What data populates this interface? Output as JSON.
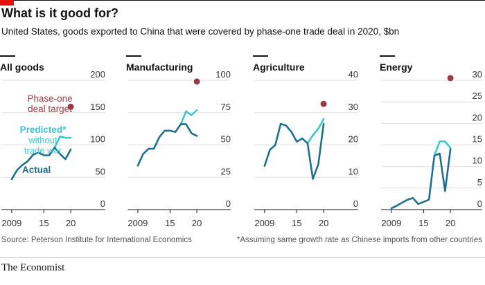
{
  "title": "What is it good for?",
  "subtitle": "United States, goods exported to China that were covered by phase-one trade deal in 2020, $bn",
  "source": "Source: Peterson Institute for International Economics",
  "footnote": "*Assuming same growth rate as Chinese imports from other countries",
  "brand": "The Economist",
  "colors": {
    "actual": "#1f6e8c",
    "predicted": "#3ec6cf",
    "target": "#9b3b47",
    "accent": "#e3120b"
  },
  "annotations": {
    "target": [
      "Phase-one",
      "deal target"
    ],
    "predicted": [
      "Predicted*",
      "without",
      "trade war"
    ],
    "actual": [
      "Actual"
    ]
  },
  "chart_data": [
    {
      "type": "line",
      "title": "All goods",
      "ylim": [
        0,
        200
      ],
      "yticks": [
        0,
        50,
        100,
        150,
        200
      ],
      "xlim": [
        2008.5,
        2020.5
      ],
      "xticks": [
        2009,
        2015,
        2020
      ],
      "xtick_labels": [
        "2009",
        "15",
        "20"
      ],
      "series": [
        {
          "name": "Actual",
          "x": [
            2009,
            2010,
            2011,
            2012,
            2013,
            2014,
            2015,
            2016,
            2017,
            2018,
            2019,
            2020
          ],
          "values": [
            47,
            61,
            69,
            75,
            85,
            88,
            84,
            84,
            96,
            86,
            78,
            93
          ]
        },
        {
          "name": "Predicted*",
          "x": [
            2017,
            2018,
            2019,
            2020
          ],
          "values": [
            96,
            113,
            111,
            111
          ]
        }
      ],
      "target": {
        "x": 2020,
        "value": 159
      }
    },
    {
      "type": "line",
      "title": "Manufacturing",
      "ylim": [
        0,
        100
      ],
      "yticks": [
        0,
        25,
        50,
        75,
        100
      ],
      "xlim": [
        2008.5,
        2020.5
      ],
      "xticks": [
        2009,
        2015,
        2020
      ],
      "xtick_labels": [
        "2009",
        "15",
        "20"
      ],
      "series": [
        {
          "name": "Actual",
          "x": [
            2009,
            2010,
            2011,
            2012,
            2013,
            2014,
            2015,
            2016,
            2017,
            2018,
            2019,
            2020
          ],
          "values": [
            34,
            43,
            47,
            47,
            56,
            61,
            61,
            60,
            66,
            66,
            59,
            57
          ]
        },
        {
          "name": "Predicted*",
          "x": [
            2017,
            2018,
            2019,
            2020
          ],
          "values": [
            66,
            76,
            73,
            77
          ]
        }
      ],
      "target": {
        "x": 2020,
        "value": 99
      }
    },
    {
      "type": "line",
      "title": "Agriculture",
      "ylim": [
        0,
        40
      ],
      "yticks": [
        0,
        10,
        20,
        30,
        40
      ],
      "xlim": [
        2008.5,
        2020.5
      ],
      "xticks": [
        2009,
        2015,
        2020
      ],
      "xtick_labels": [
        "2009",
        "15",
        "20"
      ],
      "series": [
        {
          "name": "Actual",
          "x": [
            2009,
            2010,
            2011,
            2012,
            2013,
            2014,
            2015,
            2016,
            2017,
            2018,
            2019,
            2020
          ],
          "values": [
            13.5,
            18.5,
            20,
            26.5,
            26,
            24,
            21,
            22,
            20.5,
            9.5,
            14,
            26.5
          ]
        },
        {
          "name": "Predicted*",
          "x": [
            2017,
            2018,
            2019,
            2020
          ],
          "values": [
            20.5,
            23,
            25,
            28
          ]
        }
      ],
      "target": {
        "x": 2020,
        "value": 32.7
      }
    },
    {
      "type": "line",
      "title": "Energy",
      "ylim": [
        0,
        30
      ],
      "yticks": [
        0,
        5,
        10,
        15,
        20,
        25,
        30
      ],
      "xlim": [
        2008.5,
        2020.5
      ],
      "xticks": [
        2009,
        2015,
        2020
      ],
      "xtick_labels": [
        "2009",
        "15",
        "20"
      ],
      "series": [
        {
          "name": "Actual",
          "x": [
            2009,
            2010,
            2011,
            2012,
            2013,
            2014,
            2015,
            2016,
            2017,
            2018,
            2019,
            2020
          ],
          "values": [
            0.3,
            0.9,
            1.6,
            2.3,
            2.7,
            1.3,
            1.8,
            2.3,
            12.5,
            13,
            4.3,
            14
          ]
        },
        {
          "name": "Predicted*",
          "x": [
            2017,
            2018,
            2019,
            2020
          ],
          "values": [
            12.5,
            15.8,
            15.8,
            14.3
          ]
        }
      ],
      "target": {
        "x": 2020,
        "value": 30.5
      }
    }
  ]
}
